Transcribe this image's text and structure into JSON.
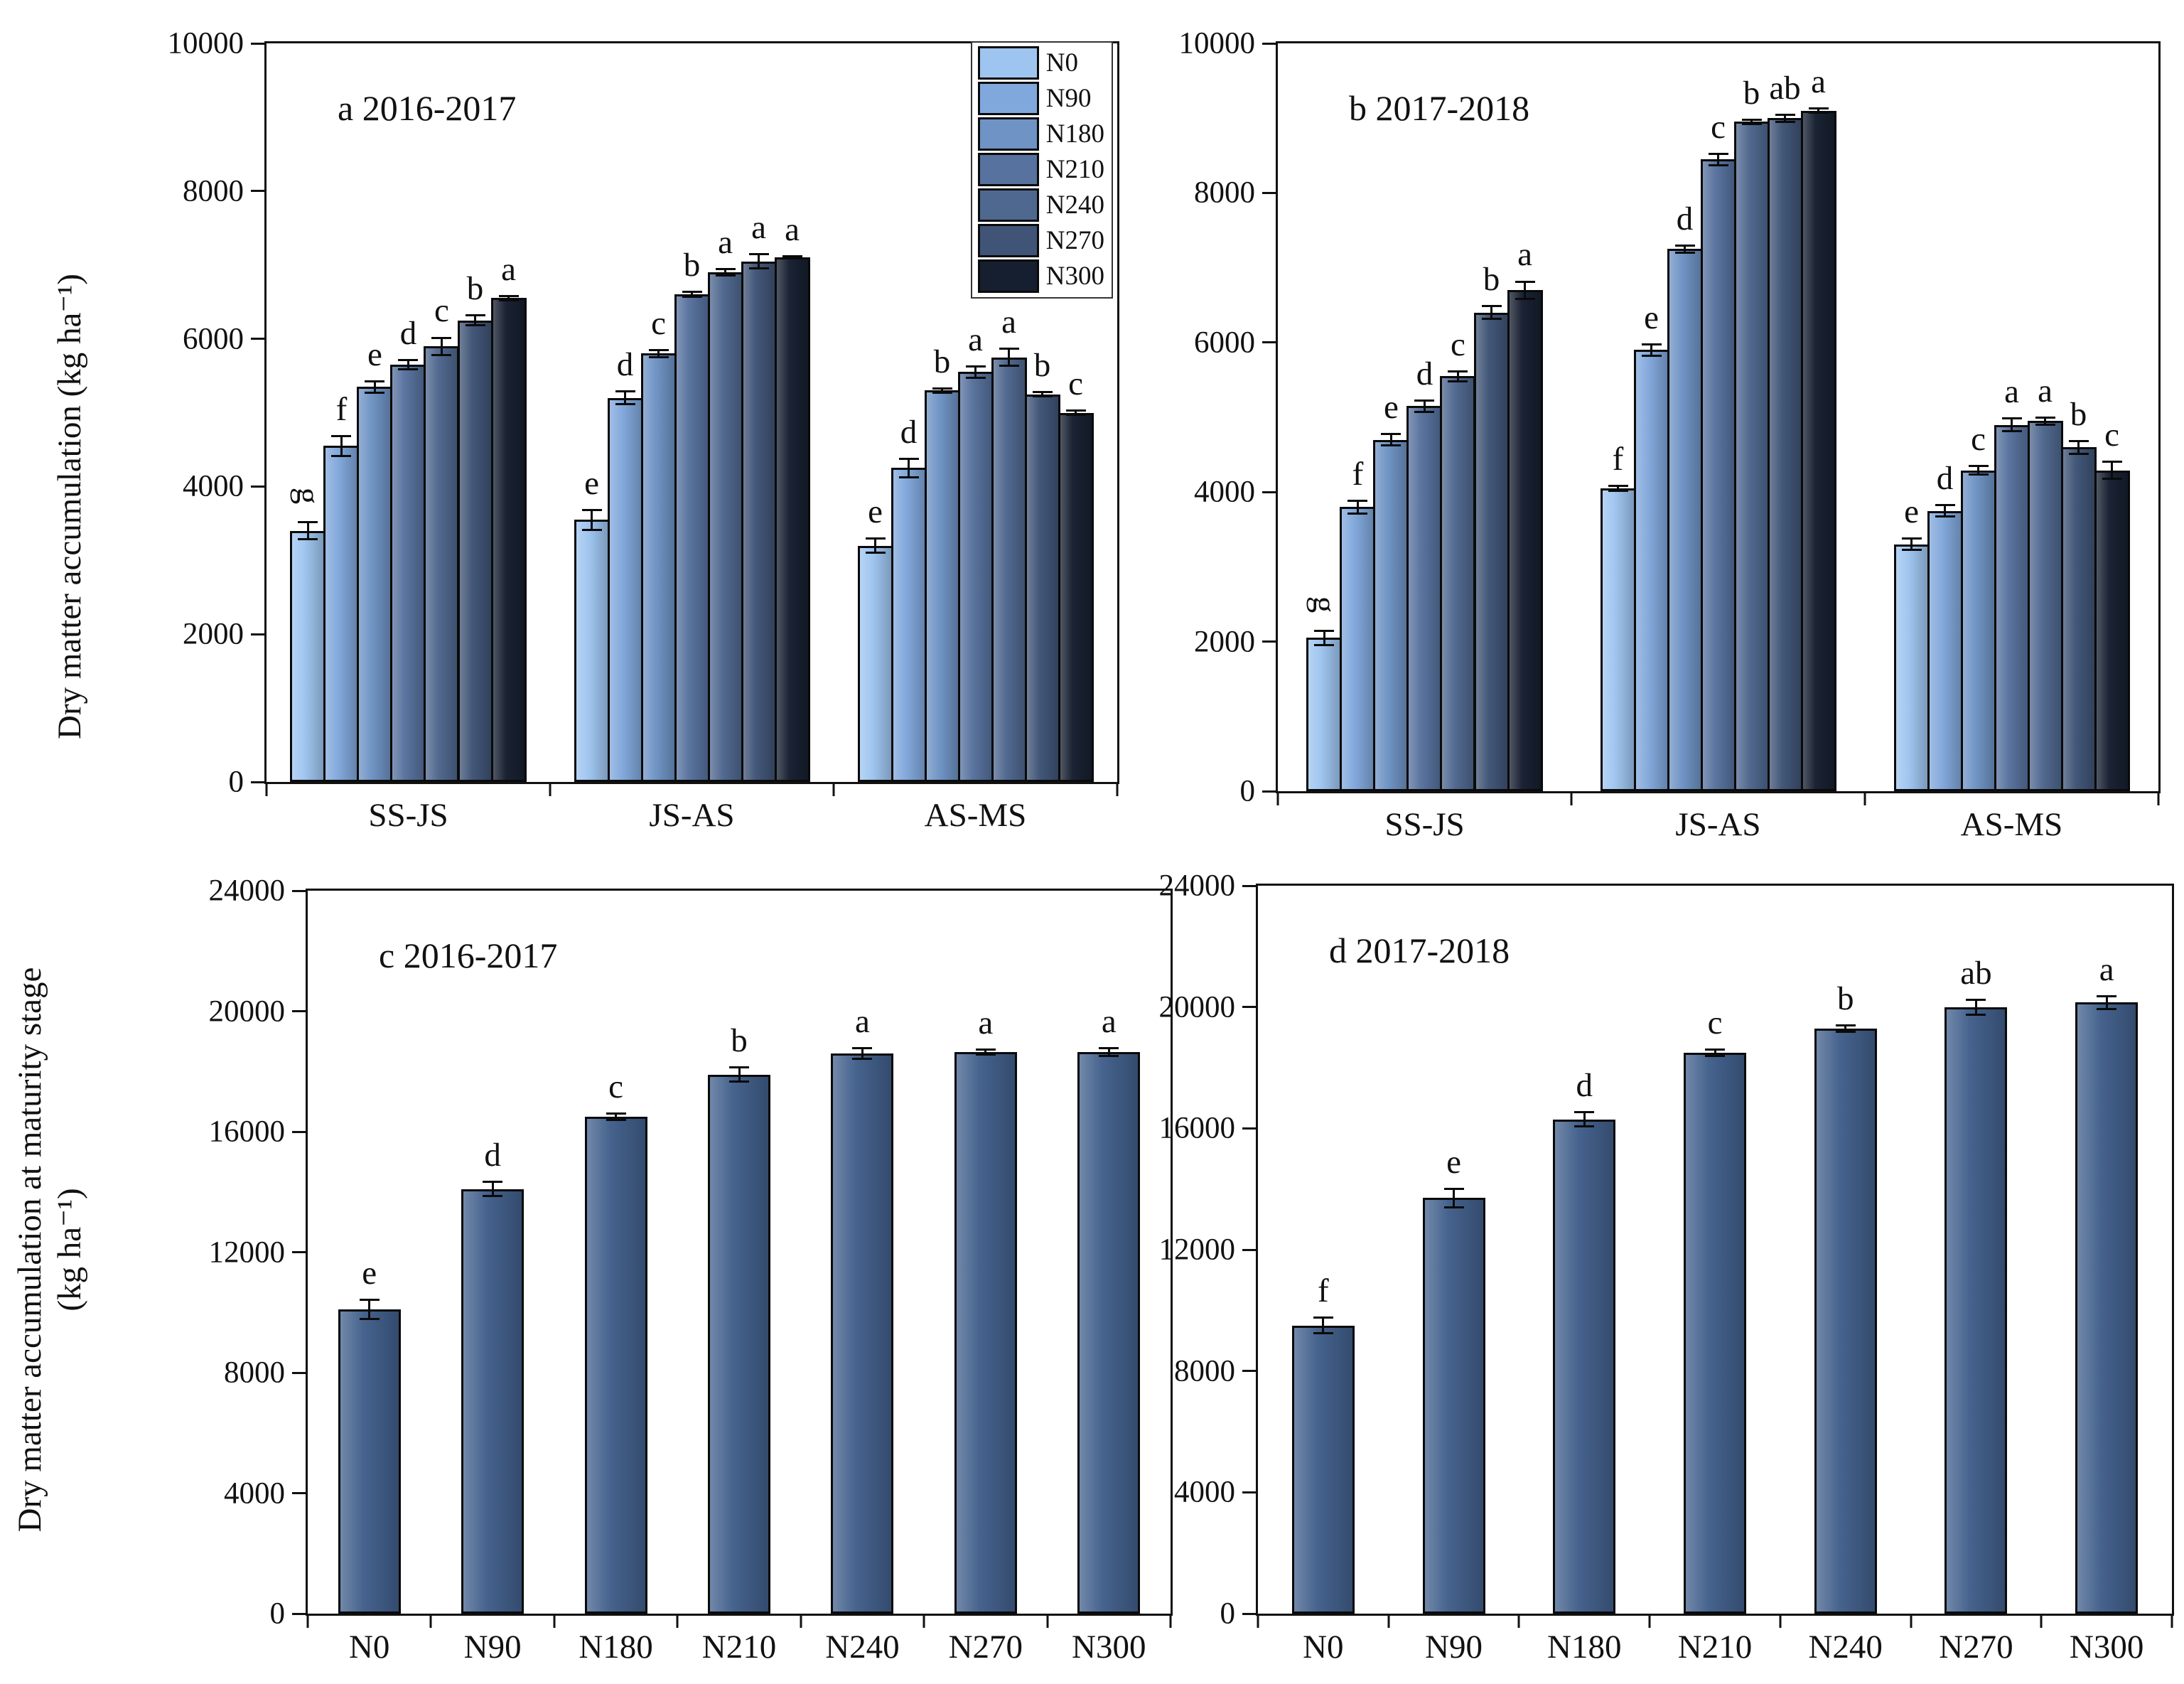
{
  "figure": {
    "background": "#ffffff",
    "axis_color": "#111111",
    "treatments": [
      "N0",
      "N90",
      "N180",
      "N210",
      "N240",
      "N270",
      "N300"
    ],
    "treatment_colors": {
      "N0": "#9EC5F0",
      "N90": "#81A8DC",
      "N180": "#6E93C4",
      "N210": "#57729E",
      "N240": "#4F688F",
      "N270": "#3F5476",
      "N300": "#161F30"
    },
    "single_bar_color": "#42608C",
    "legend_items": [
      "N0",
      "N90",
      "N180",
      "N210",
      "N240",
      "N270",
      "N300"
    ]
  },
  "chart_data": [
    {
      "id": "a",
      "type": "grouped-bar",
      "title": "a 2016-2017",
      "ylabel": "Dry matter accumulation (kg ha⁻¹)",
      "ylim": [
        0,
        10000
      ],
      "ytick_step": 2000,
      "grid": false,
      "legend_position": "top-right-inside",
      "categories": [
        "SS-JS",
        "JS-AS",
        "AS-MS"
      ],
      "series": [
        {
          "name": "N0",
          "values": [
            3400,
            3550,
            3200
          ],
          "errors": [
            130,
            150,
            110
          ],
          "letters": [
            "g",
            "e",
            "e"
          ]
        },
        {
          "name": "N90",
          "values": [
            4550,
            5200,
            4250
          ],
          "errors": [
            150,
            100,
            140
          ],
          "letters": [
            "f",
            "d",
            "d"
          ]
        },
        {
          "name": "N180",
          "values": [
            5350,
            5800,
            5300
          ],
          "errors": [
            90,
            60,
            40
          ],
          "letters": [
            "e",
            "c",
            "b"
          ]
        },
        {
          "name": "N210",
          "values": [
            5650,
            6600,
            5550
          ],
          "errors": [
            80,
            50,
            90
          ],
          "letters": [
            "d",
            "b",
            "a"
          ]
        },
        {
          "name": "N240",
          "values": [
            5900,
            6900,
            5750
          ],
          "errors": [
            130,
            60,
            130
          ],
          "letters": [
            "c",
            "a",
            "a"
          ]
        },
        {
          "name": "N270",
          "values": [
            6250,
            7050,
            5250
          ],
          "errors": [
            80,
            110,
            40
          ],
          "letters": [
            "b",
            "a",
            "b"
          ]
        },
        {
          "name": "N300",
          "values": [
            6550,
            7100,
            5000
          ],
          "errors": [
            40,
            30,
            40
          ],
          "letters": [
            "a",
            "a",
            "c"
          ]
        }
      ],
      "legend": true
    },
    {
      "id": "b",
      "type": "grouped-bar",
      "title": "b 2017-2018",
      "ylabel": "Dry matter accumulation (kg ha⁻¹)",
      "ylim": [
        0,
        10000
      ],
      "ytick_step": 2000,
      "grid": false,
      "categories": [
        "SS-JS",
        "JS-AS",
        "AS-MS"
      ],
      "series": [
        {
          "name": "N0",
          "values": [
            2050,
            4050,
            3300
          ],
          "errors": [
            110,
            50,
            90
          ],
          "letters": [
            "g",
            "f",
            "e"
          ]
        },
        {
          "name": "N90",
          "values": [
            3800,
            5900,
            3750
          ],
          "errors": [
            100,
            90,
            90
          ],
          "letters": [
            "f",
            "e",
            "d"
          ]
        },
        {
          "name": "N180",
          "values": [
            4700,
            7250,
            4290
          ],
          "errors": [
            90,
            60,
            70
          ],
          "letters": [
            "e",
            "d",
            "c"
          ]
        },
        {
          "name": "N210",
          "values": [
            5150,
            8450,
            4900
          ],
          "errors": [
            90,
            90,
            100
          ],
          "letters": [
            "d",
            "c",
            "a"
          ]
        },
        {
          "name": "N240",
          "values": [
            5550,
            8950,
            4950
          ],
          "errors": [
            80,
            40,
            60
          ],
          "letters": [
            "c",
            "b",
            "a"
          ]
        },
        {
          "name": "N270",
          "values": [
            6400,
            9000,
            4600
          ],
          "errors": [
            100,
            60,
            100
          ],
          "letters": [
            "b",
            "ab",
            "b"
          ]
        },
        {
          "name": "N300",
          "values": [
            6700,
            9100,
            4290
          ],
          "errors": [
            130,
            40,
            130
          ],
          "letters": [
            "a",
            "a",
            "c"
          ]
        }
      ],
      "legend": false
    },
    {
      "id": "c",
      "type": "bar",
      "title": "c 2016-2017",
      "ylabel_lines": [
        "Dry matter accumulation at maturity stage",
        "(kg ha⁻¹)"
      ],
      "ylim": [
        0,
        24000
      ],
      "ytick_step": 4000,
      "grid": false,
      "categories": [
        "N0",
        "N90",
        "N180",
        "N210",
        "N240",
        "N270",
        "N300"
      ],
      "values": [
        10100,
        14100,
        16500,
        17900,
        18600,
        18650,
        18650
      ],
      "errors": [
        350,
        280,
        140,
        280,
        220,
        120,
        160
      ],
      "letters": [
        "e",
        "d",
        "c",
        "b",
        "a",
        "a",
        "a"
      ]
    },
    {
      "id": "d",
      "type": "bar",
      "title": "d 2017-2018",
      "ylim": [
        0,
        24000
      ],
      "ytick_step": 4000,
      "grid": false,
      "categories": [
        "N0",
        "N90",
        "N180",
        "N210",
        "N240",
        "N270",
        "N300"
      ],
      "values": [
        9500,
        13700,
        16300,
        18500,
        19300,
        20000,
        20150
      ],
      "errors": [
        300,
        350,
        280,
        140,
        140,
        280,
        240
      ],
      "letters": [
        "f",
        "e",
        "d",
        "c",
        "b",
        "ab",
        "a"
      ]
    }
  ]
}
